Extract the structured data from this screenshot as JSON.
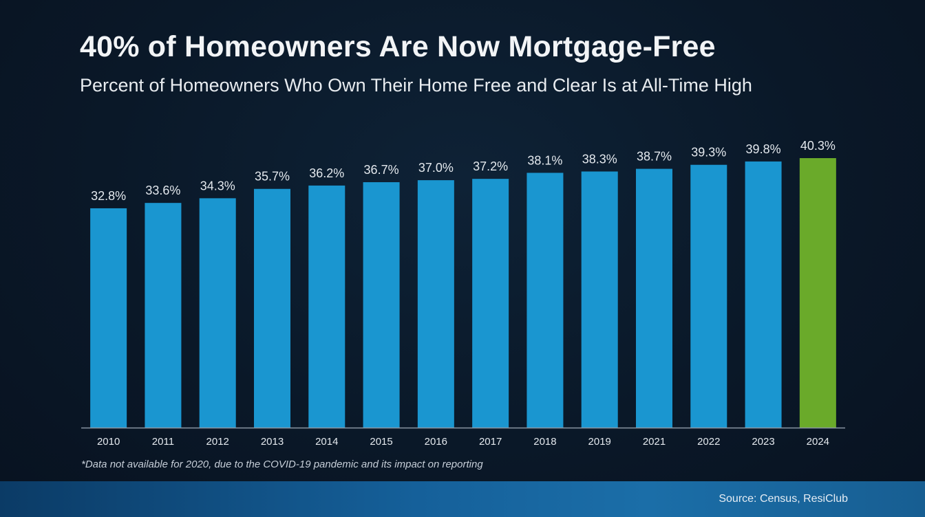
{
  "header": {
    "title": "40% of Homeowners Are Now Mortgage-Free",
    "subtitle": "Percent of Homeowners Who Own Their Home Free and Clear Is at All-Time High"
  },
  "footnote": "*Data not available for 2020, due to the COVID-19 pandemic and its impact on reporting",
  "source": "Source: Census, ResiClub",
  "colors": {
    "bar": "#1a96d0",
    "highlight": "#6aaa2a",
    "axis": "#8a96a3",
    "label": "#e4e9ee"
  },
  "chart_data": {
    "type": "bar",
    "categories": [
      "2010",
      "2011",
      "2012",
      "2013",
      "2014",
      "2015",
      "2016",
      "2017",
      "2018",
      "2019",
      "2021",
      "2022",
      "2023",
      "2024"
    ],
    "values": [
      32.8,
      33.6,
      34.3,
      35.7,
      36.2,
      36.7,
      37.0,
      37.2,
      38.1,
      38.3,
      38.7,
      39.3,
      39.8,
      40.3
    ],
    "value_labels": [
      "32.8%",
      "33.6%",
      "34.3%",
      "35.7%",
      "36.2%",
      "36.7%",
      "37.0%",
      "37.2%",
      "38.1%",
      "38.3%",
      "38.7%",
      "39.3%",
      "39.8%",
      "40.3%"
    ],
    "highlight_category": "2024",
    "xlabel": "",
    "ylabel": "",
    "ylim": [
      0,
      40.3
    ],
    "grid": false,
    "legend": "none"
  }
}
